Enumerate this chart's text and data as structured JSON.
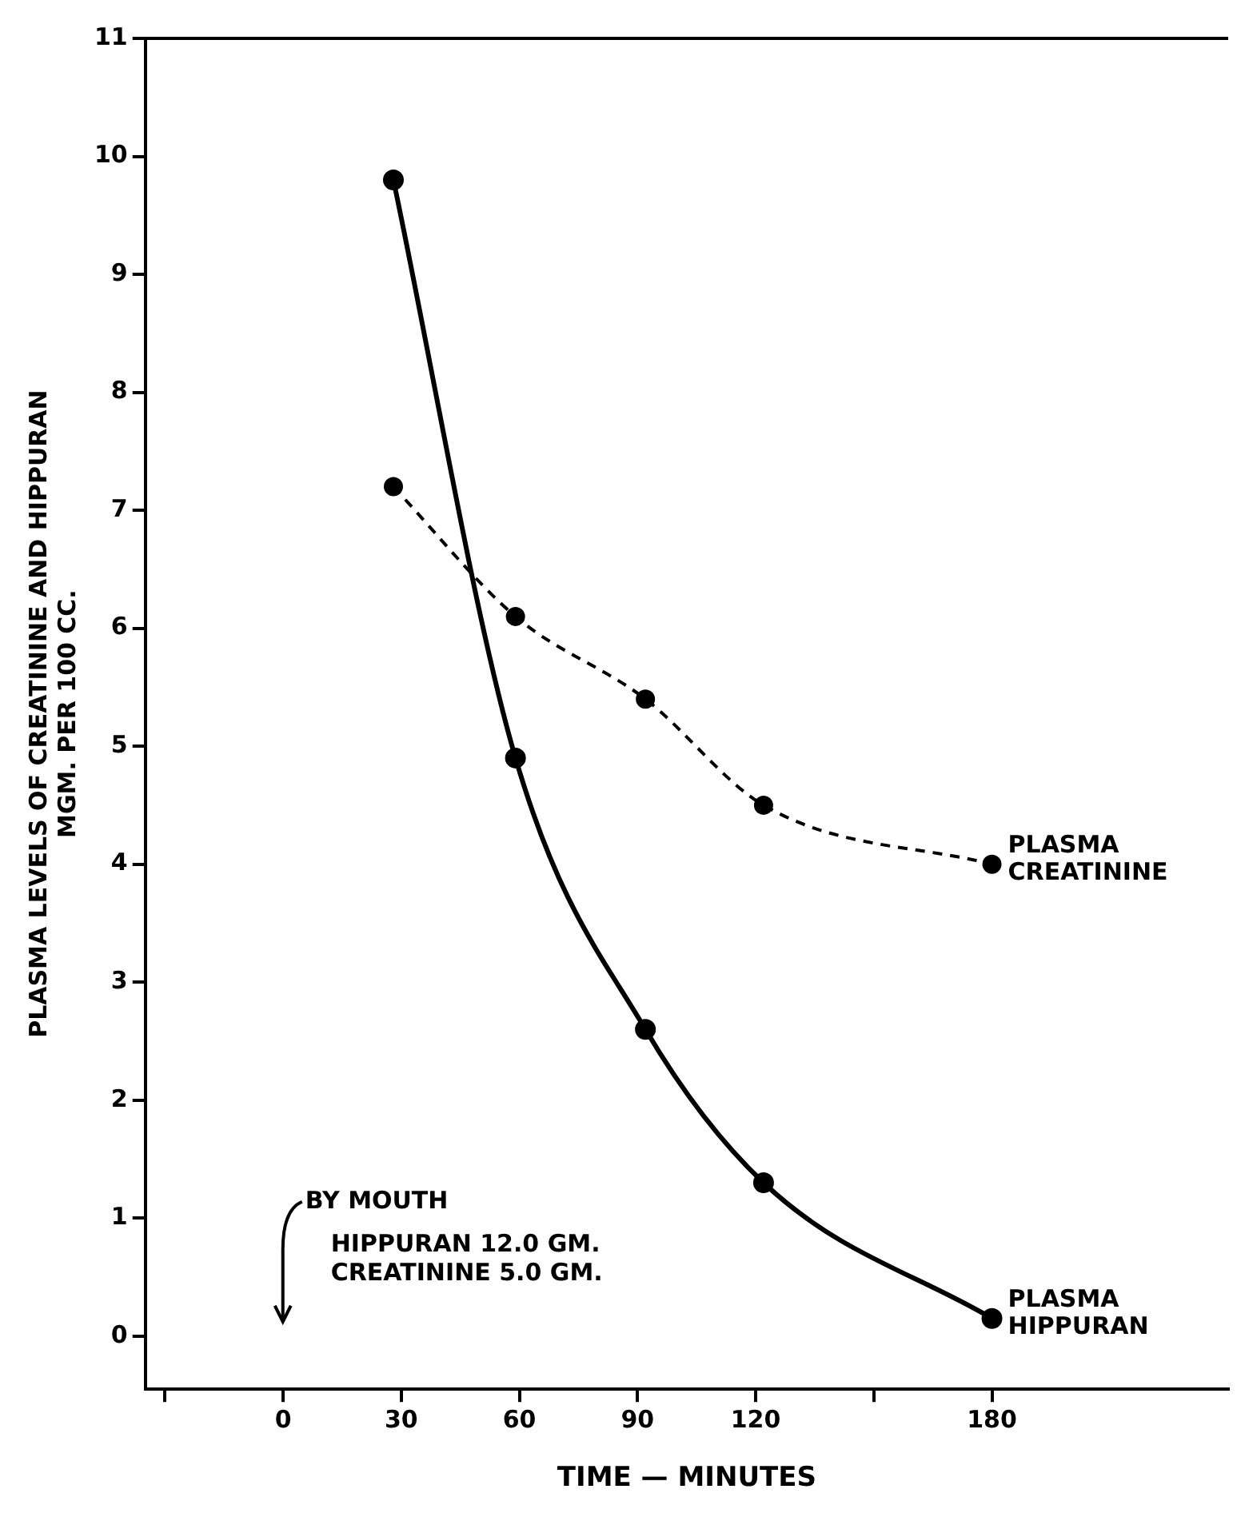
{
  "chart_data": {
    "type": "line",
    "xlabel": "TIME — MINUTES",
    "ylabel": "PLASMA LEVELS OF CREATININE AND HIPPURAN\nMGM. PER 100 CC.",
    "xlim": [
      -35,
      240
    ],
    "ylim": [
      -0.45,
      11
    ],
    "xticks": [
      {
        "value": -30,
        "label": null
      },
      0,
      30,
      60,
      90,
      120,
      {
        "value": 150,
        "label": null
      },
      180
    ],
    "yticks": [
      0,
      1,
      2,
      3,
      4,
      5,
      6,
      7,
      8,
      9,
      10,
      11
    ],
    "grid": false,
    "legend": false,
    "marker": "circle",
    "series": [
      {
        "name": "PLASMA HIPPURAN",
        "color": "#000000",
        "line_style": "solid",
        "x": [
          28,
          59,
          92,
          122,
          180
        ],
        "values": [
          9.8,
          4.9,
          2.6,
          1.3,
          0.15
        ]
      },
      {
        "name": "PLASMA CREATININE",
        "color": "#000000",
        "line_style": "dashed",
        "x": [
          28,
          59,
          92,
          122,
          180
        ],
        "values": [
          7.2,
          6.1,
          5.4,
          4.5,
          4.0
        ]
      }
    ],
    "annotations": [
      "BY MOUTH",
      "HIPPURAN 12.0 GM.",
      "CREATININE 5.0 GM."
    ]
  }
}
